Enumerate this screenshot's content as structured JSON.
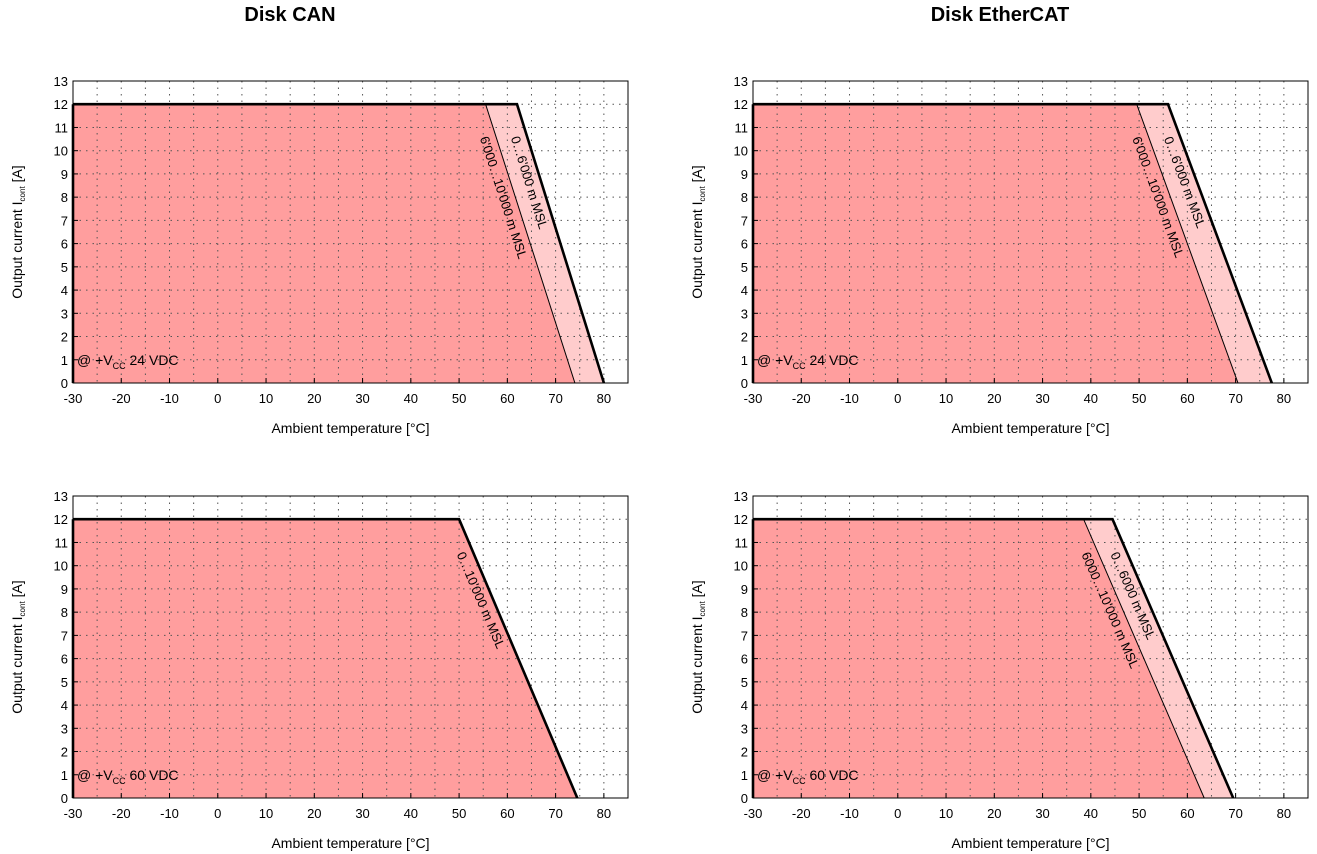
{
  "columns": [
    {
      "title": "Disk CAN"
    },
    {
      "title": "Disk EtherCAT"
    }
  ],
  "colors": {
    "fill_main": "#ff9e9e",
    "fill_extension": "#ffcccc",
    "curve": "#000000",
    "grid": "#555555"
  },
  "chart_data": [
    {
      "type": "area",
      "column": "Disk CAN",
      "xlabel": "Ambient temperature [°C]",
      "ylabel": "Output current I",
      "ylabel_sub": "cont",
      "ylabel_unit": " [A]",
      "xlim": [
        -30,
        85
      ],
      "ylim": [
        0,
        13
      ],
      "xticks": [
        -30,
        -20,
        -10,
        0,
        10,
        20,
        30,
        40,
        50,
        60,
        70,
        80
      ],
      "yticks": [
        0,
        1,
        2,
        3,
        4,
        5,
        6,
        7,
        8,
        9,
        10,
        11,
        12,
        13
      ],
      "grid": true,
      "annotation": {
        "prefix": "@ +V",
        "sub": "CC",
        "suffix": " 24 VDC"
      },
      "series": [
        {
          "name": "0…6'000 m MSL",
          "x": [
            -30,
            62,
            80
          ],
          "y": [
            12,
            12,
            0
          ]
        },
        {
          "name": "6'000…10'000 m MSL",
          "x": [
            -30,
            55.5,
            74
          ],
          "y": [
            12,
            12,
            0
          ]
        }
      ]
    },
    {
      "type": "area",
      "column": "Disk EtherCAT",
      "xlabel": "Ambient temperature [°C]",
      "ylabel": "Output current I",
      "ylabel_sub": "cont",
      "ylabel_unit": " [A]",
      "xlim": [
        -30,
        85
      ],
      "ylim": [
        0,
        13
      ],
      "xticks": [
        -30,
        -20,
        -10,
        0,
        10,
        20,
        30,
        40,
        50,
        60,
        70,
        80
      ],
      "yticks": [
        0,
        1,
        2,
        3,
        4,
        5,
        6,
        7,
        8,
        9,
        10,
        11,
        12,
        13
      ],
      "grid": true,
      "annotation": {
        "prefix": "@ +V",
        "sub": "CC",
        "suffix": " 24 VDC"
      },
      "series": [
        {
          "name": "0…6'000 m MSL",
          "x": [
            -30,
            56,
            77.5
          ],
          "y": [
            12,
            12,
            0
          ]
        },
        {
          "name": "6'000…10'000 m MSL",
          "x": [
            -30,
            49.5,
            70.5
          ],
          "y": [
            12,
            12,
            0
          ]
        }
      ]
    },
    {
      "type": "area",
      "column": "Disk CAN",
      "xlabel": "Ambient temperature [°C]",
      "ylabel": "Output current I",
      "ylabel_sub": "cont",
      "ylabel_unit": " [A]",
      "xlim": [
        -30,
        85
      ],
      "ylim": [
        0,
        13
      ],
      "xticks": [
        -30,
        -20,
        -10,
        0,
        10,
        20,
        30,
        40,
        50,
        60,
        70,
        80
      ],
      "yticks": [
        0,
        1,
        2,
        3,
        4,
        5,
        6,
        7,
        8,
        9,
        10,
        11,
        12,
        13
      ],
      "grid": true,
      "annotation": {
        "prefix": "@ +V",
        "sub": "CC",
        "suffix": " 60 VDC"
      },
      "series": [
        {
          "name": "0…10'000 m MSL",
          "x": [
            -30,
            50,
            74.5
          ],
          "y": [
            12,
            12,
            0
          ]
        }
      ]
    },
    {
      "type": "area",
      "column": "Disk EtherCAT",
      "xlabel": "Ambient temperature [°C]",
      "ylabel": "Output current I",
      "ylabel_sub": "cont",
      "ylabel_unit": " [A]",
      "xlim": [
        -30,
        85
      ],
      "ylim": [
        0,
        13
      ],
      "xticks": [
        -30,
        -20,
        -10,
        0,
        10,
        20,
        30,
        40,
        50,
        60,
        70,
        80
      ],
      "yticks": [
        0,
        1,
        2,
        3,
        4,
        5,
        6,
        7,
        8,
        9,
        10,
        11,
        12,
        13
      ],
      "grid": true,
      "annotation": {
        "prefix": "@ +V",
        "sub": "CC",
        "suffix": " 60 VDC"
      },
      "series": [
        {
          "name": "0…6000 m MSL",
          "x": [
            -30,
            44.5,
            69.5
          ],
          "y": [
            12,
            12,
            0
          ]
        },
        {
          "name": "6000…10'000 m MSL",
          "x": [
            -30,
            38.5,
            63.5
          ],
          "y": [
            12,
            12,
            0
          ]
        }
      ]
    }
  ]
}
